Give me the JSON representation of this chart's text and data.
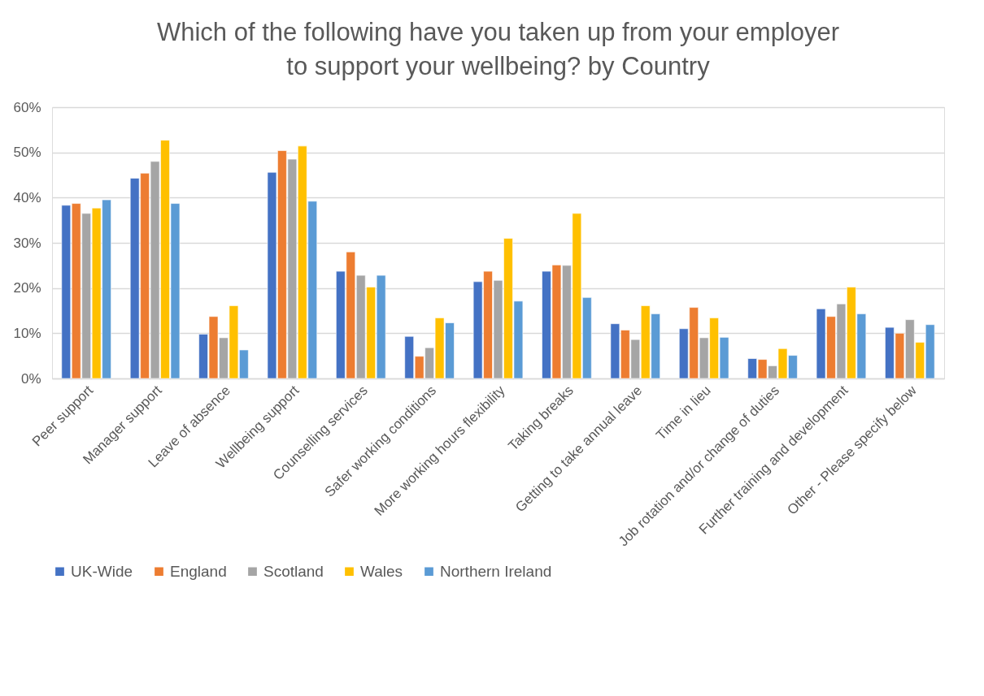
{
  "chart_data": {
    "type": "bar",
    "title": "Which of the following have you taken up from your employer\nto support your wellbeing?  by Country",
    "categories": [
      "Peer support",
      "Manager support",
      "Leave of absence",
      "Wellbeing support",
      "Counselling services",
      "Safer working conditions",
      "More working hours flexibility",
      "Taking breaks",
      "Getting to take annual leave",
      "Time in lieu",
      "Job rotation and/or change of duties",
      "Further training and development",
      "Other - Please specify below"
    ],
    "series": [
      {
        "name": "UK-Wide",
        "color": "#4472c4",
        "values": [
          38.3,
          44.3,
          9.8,
          45.6,
          23.7,
          9.3,
          21.4,
          23.7,
          12.1,
          11.0,
          4.4,
          15.4,
          11.3
        ]
      },
      {
        "name": "England",
        "color": "#ed7d31",
        "values": [
          38.7,
          45.4,
          13.7,
          50.4,
          28.0,
          4.9,
          23.7,
          25.1,
          10.7,
          15.7,
          4.2,
          13.7,
          10.0
        ]
      },
      {
        "name": "Scotland",
        "color": "#a5a5a5",
        "values": [
          36.5,
          48.0,
          9.0,
          48.5,
          22.8,
          6.8,
          21.7,
          25.0,
          8.6,
          9.0,
          2.8,
          16.5,
          13.0
        ]
      },
      {
        "name": "Wales",
        "color": "#ffc000",
        "values": [
          37.7,
          52.7,
          16.1,
          51.4,
          20.2,
          13.4,
          31.0,
          36.5,
          16.1,
          13.4,
          6.6,
          20.2,
          8.0
        ]
      },
      {
        "name": "Northern Ireland",
        "color": "#5b9bd5",
        "values": [
          39.5,
          38.7,
          6.3,
          39.2,
          22.8,
          12.3,
          17.1,
          17.9,
          14.3,
          9.1,
          5.1,
          14.3,
          11.9
        ]
      }
    ],
    "ylim": [
      0,
      60
    ],
    "yticks": [
      {
        "value": 0,
        "label": "0%"
      },
      {
        "value": 10,
        "label": "10%"
      },
      {
        "value": 20,
        "label": "20%"
      },
      {
        "value": 30,
        "label": "30%"
      },
      {
        "value": 40,
        "label": "40%"
      },
      {
        "value": 50,
        "label": "50%"
      },
      {
        "value": 60,
        "label": "60%"
      }
    ],
    "grid": "y",
    "legend": "bottom"
  }
}
